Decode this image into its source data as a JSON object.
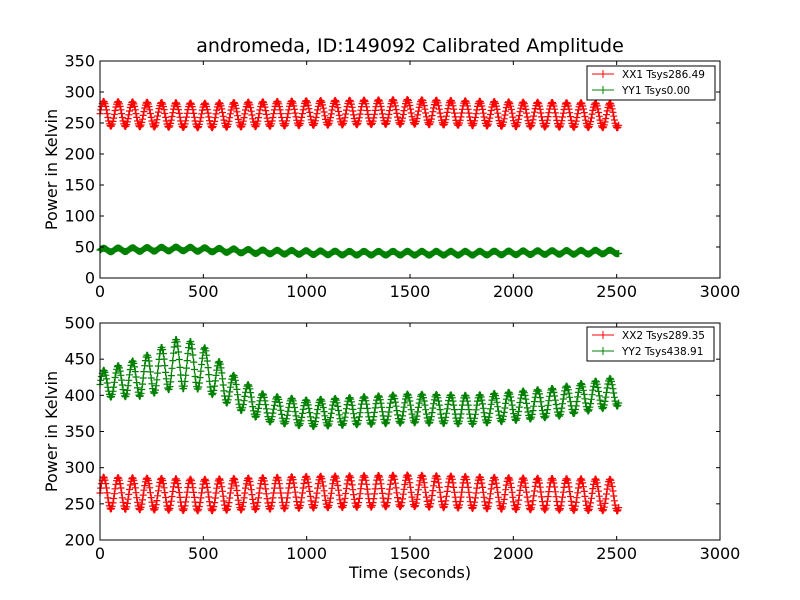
{
  "chart_data": [
    {
      "type": "line",
      "title": "andromeda, ID:149092 Calibrated Amplitude",
      "xlabel": "",
      "ylabel": "Power in Kelvin",
      "xlim": [
        0,
        3000
      ],
      "ylim": [
        0,
        350
      ],
      "xticks": [
        0,
        500,
        1000,
        1500,
        2000,
        2500,
        3000
      ],
      "yticks": [
        0,
        50,
        100,
        150,
        200,
        250,
        300,
        350
      ],
      "legend_position": "top-right",
      "series": [
        {
          "name": "XX1 Tsys286.49",
          "color": "#ff0000",
          "x_range": [
            0,
            2510
          ],
          "period": 70,
          "baseline": [
            [
              0,
              265
            ],
            [
              500,
              262
            ],
            [
              1000,
              266
            ],
            [
              1500,
              268
            ],
            [
              2000,
              264
            ],
            [
              2500,
              262
            ]
          ],
          "amplitude": [
            [
              0,
              20
            ],
            [
              2500,
              20
            ]
          ]
        },
        {
          "name": "YY1 Tsys0.00",
          "color": "#008000",
          "x_range": [
            0,
            2510
          ],
          "period": 70,
          "baseline": [
            [
              0,
              45
            ],
            [
              400,
              47
            ],
            [
              800,
              42
            ],
            [
              1200,
              40
            ],
            [
              1800,
              40
            ],
            [
              2500,
              42
            ]
          ],
          "amplitude": [
            [
              0,
              3
            ],
            [
              2500,
              3
            ]
          ]
        }
      ]
    },
    {
      "type": "line",
      "title": "",
      "xlabel": "Time (seconds)",
      "ylabel": "Power in Kelvin",
      "xlim": [
        0,
        3000
      ],
      "ylim": [
        200,
        500
      ],
      "xticks": [
        0,
        500,
        1000,
        1500,
        2000,
        2500,
        3000
      ],
      "yticks": [
        200,
        250,
        300,
        350,
        400,
        450,
        500
      ],
      "legend_position": "top-right",
      "series": [
        {
          "name": "XX2 Tsys289.35",
          "color": "#ff0000",
          "x_range": [
            0,
            2510
          ],
          "period": 70,
          "baseline": [
            [
              0,
              265
            ],
            [
              500,
              262
            ],
            [
              1000,
              266
            ],
            [
              1500,
              268
            ],
            [
              2000,
              264
            ],
            [
              2500,
              262
            ]
          ],
          "amplitude": [
            [
              0,
              22
            ],
            [
              2500,
              22
            ]
          ]
        },
        {
          "name": "YY2 Tsys438.91",
          "color": "#008000",
          "x_range": [
            0,
            2510
          ],
          "period": 70,
          "baseline": [
            [
              0,
              415
            ],
            [
              200,
              425
            ],
            [
              380,
              445
            ],
            [
              500,
              438
            ],
            [
              650,
              405
            ],
            [
              800,
              382
            ],
            [
              1000,
              375
            ],
            [
              1500,
              382
            ],
            [
              1800,
              380
            ],
            [
              2000,
              385
            ],
            [
              2200,
              390
            ],
            [
              2400,
              400
            ],
            [
              2500,
              405
            ]
          ],
          "amplitude": [
            [
              0,
              18
            ],
            [
              400,
              35
            ],
            [
              650,
              22
            ],
            [
              800,
              18
            ],
            [
              1500,
              20
            ],
            [
              2500,
              20
            ]
          ]
        }
      ]
    }
  ]
}
